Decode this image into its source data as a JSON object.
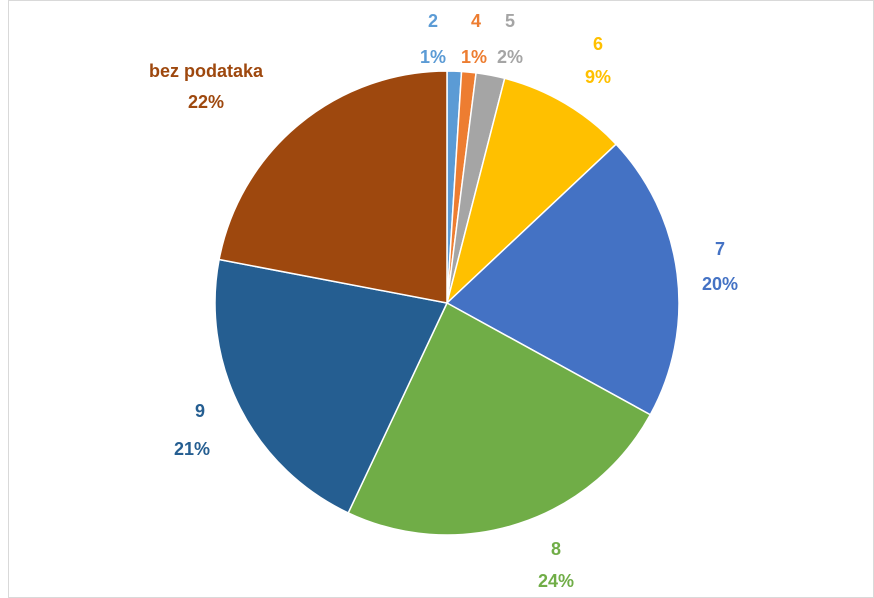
{
  "chart_data": {
    "type": "pie",
    "categories": [
      "2",
      "4",
      "5",
      "6",
      "7",
      "8",
      "9",
      "bez podataka"
    ],
    "values": [
      1,
      1,
      2,
      9,
      20,
      24,
      21,
      22
    ],
    "value_labels": [
      "1%",
      "1%",
      "2%",
      "9%",
      "20%",
      "24%",
      "21%",
      "22%"
    ],
    "colors": [
      "#5b9bd5",
      "#ed7d31",
      "#a5a5a5",
      "#ffc000",
      "#4472c4",
      "#70ad47",
      "#255e91",
      "#9e480e"
    ]
  }
}
